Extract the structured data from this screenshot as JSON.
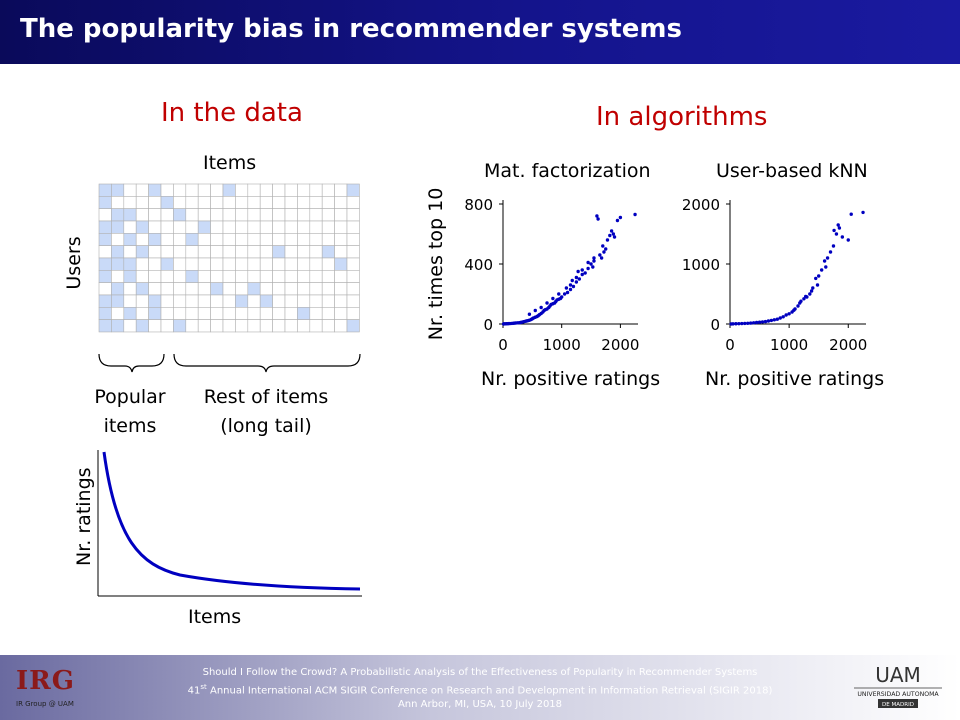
{
  "header": {
    "title": "The popularity bias in recommender systems"
  },
  "left": {
    "heading": "In the data",
    "matrix": {
      "items_label": "Items",
      "users_label": "Users",
      "rows": 12,
      "cols": 21,
      "filled_cells": [
        [
          0,
          0
        ],
        [
          0,
          1
        ],
        [
          0,
          4
        ],
        [
          0,
          10
        ],
        [
          0,
          20
        ],
        [
          1,
          0
        ],
        [
          1,
          5
        ],
        [
          2,
          1
        ],
        [
          2,
          2
        ],
        [
          2,
          6
        ],
        [
          3,
          0
        ],
        [
          3,
          1
        ],
        [
          3,
          3
        ],
        [
          3,
          8
        ],
        [
          4,
          0
        ],
        [
          4,
          2
        ],
        [
          4,
          4
        ],
        [
          4,
          7
        ],
        [
          5,
          1
        ],
        [
          5,
          3
        ],
        [
          5,
          14
        ],
        [
          5,
          18
        ],
        [
          6,
          0
        ],
        [
          6,
          1
        ],
        [
          6,
          2
        ],
        [
          6,
          5
        ],
        [
          6,
          19
        ],
        [
          7,
          0
        ],
        [
          7,
          2
        ],
        [
          7,
          7
        ],
        [
          8,
          1
        ],
        [
          8,
          3
        ],
        [
          8,
          9
        ],
        [
          8,
          12
        ],
        [
          9,
          0
        ],
        [
          9,
          1
        ],
        [
          9,
          4
        ],
        [
          9,
          11
        ],
        [
          9,
          13
        ],
        [
          10,
          0
        ],
        [
          10,
          2
        ],
        [
          10,
          4
        ],
        [
          10,
          16
        ],
        [
          11,
          0
        ],
        [
          11,
          1
        ],
        [
          11,
          3
        ],
        [
          11,
          6
        ],
        [
          11,
          20
        ]
      ],
      "filled_color": "#c9daf8",
      "grid_color": "#b0b0b0",
      "popular_label_line1": "Popular",
      "popular_label_line2": "items",
      "rest_label_line1": "Rest of items",
      "rest_label_line2": "(long tail)"
    },
    "tail_chart": {
      "xlabel": "Items",
      "ylabel": "Nr. ratings",
      "color": "#0000c0"
    }
  },
  "right": {
    "heading": "In algorithms"
  },
  "chart_data": [
    {
      "type": "scatter",
      "title": "Mat. factorization",
      "xlabel": "Nr. positive ratings",
      "ylabel": "Nr. times top 10",
      "xlim": [
        0,
        2300
      ],
      "ylim": [
        0,
        800
      ],
      "xticks": [
        0,
        1000,
        2000
      ],
      "yticks": [
        0,
        400,
        800
      ],
      "color": "#0000c0",
      "x": [
        1600,
        1620,
        1950,
        2000,
        2250,
        1850,
        1880,
        1900,
        1780,
        1820,
        1700,
        1750,
        1720,
        1650,
        1680,
        1550,
        1500,
        1530,
        1450,
        1400,
        1350,
        1300,
        1250,
        1200,
        1150,
        1100,
        1050,
        1000,
        980,
        950,
        920,
        900,
        880,
        850,
        820,
        800,
        780,
        750,
        720,
        700,
        680,
        650,
        620,
        600,
        580,
        550,
        520,
        500,
        480,
        450,
        420,
        400,
        380,
        350,
        320,
        300,
        280,
        250,
        220,
        200,
        180,
        150,
        120,
        100,
        80,
        60,
        40,
        20,
        10,
        1150,
        1250,
        1350,
        1450,
        1550,
        950,
        850,
        750,
        650,
        550,
        450,
        1080,
        1180,
        1280
      ],
      "y": [
        720,
        700,
        690,
        710,
        730,
        620,
        600,
        580,
        560,
        590,
        520,
        500,
        480,
        460,
        440,
        420,
        400,
        380,
        370,
        340,
        330,
        300,
        280,
        250,
        230,
        210,
        200,
        180,
        170,
        165,
        160,
        150,
        140,
        135,
        130,
        120,
        110,
        100,
        95,
        90,
        80,
        70,
        62,
        55,
        50,
        45,
        40,
        35,
        30,
        25,
        22,
        20,
        18,
        15,
        12,
        10,
        9,
        8,
        7,
        6,
        5,
        4,
        3,
        3,
        2,
        2,
        1,
        1,
        0,
        260,
        310,
        360,
        410,
        440,
        200,
        170,
        140,
        110,
        90,
        65,
        240,
        290,
        350
      ]
    },
    {
      "type": "scatter",
      "title": "User-based kNN",
      "xlabel": "Nr. positive ratings",
      "ylabel": "",
      "xlim": [
        0,
        2300
      ],
      "ylim": [
        0,
        2000
      ],
      "xticks": [
        0,
        1000,
        2000
      ],
      "yticks": [
        0,
        1000,
        2000
      ],
      "color": "#0000c0",
      "x": [
        2250,
        2050,
        1850,
        1800,
        1760,
        1830,
        1900,
        2000,
        1700,
        1650,
        1600,
        1550,
        1500,
        1450,
        1400,
        1350,
        1300,
        1250,
        1200,
        1150,
        1100,
        1050,
        1000,
        950,
        900,
        850,
        800,
        750,
        700,
        650,
        600,
        550,
        500,
        450,
        400,
        350,
        300,
        250,
        200,
        150,
        100,
        50,
        20,
        1750,
        1620,
        1480,
        1380,
        1280,
        1180,
        1080
      ],
      "y": [
        1860,
        1830,
        1600,
        1500,
        1560,
        1650,
        1450,
        1400,
        1200,
        1100,
        1050,
        900,
        800,
        760,
        600,
        500,
        450,
        420,
        380,
        300,
        250,
        200,
        170,
        150,
        120,
        100,
        80,
        70,
        60,
        50,
        40,
        35,
        30,
        25,
        20,
        15,
        12,
        10,
        8,
        6,
        4,
        2,
        1,
        1300,
        950,
        650,
        550,
        460,
        350,
        230
      ]
    }
  ],
  "footer": {
    "line1": "Should I Follow the Crowd? A Probabilistic Analysis of the Effectiveness of Popularity in Recommender Systems",
    "line2_pre": "41",
    "line2_sup": "st",
    "line2_post": " Annual International ACM SIGIR Conference on Research and Development in Information Retrieval (SIGIR 2018)",
    "line3": "Ann Arbor, MI, USA, 10 July 2018",
    "logo_left": "IRG",
    "logo_left_sub": "IR Group @ UAM",
    "logo_right_top": "UAM",
    "logo_right_mid": "UNIVERSIDAD AUTONOMA",
    "logo_right_bot": "DE MADRID"
  }
}
